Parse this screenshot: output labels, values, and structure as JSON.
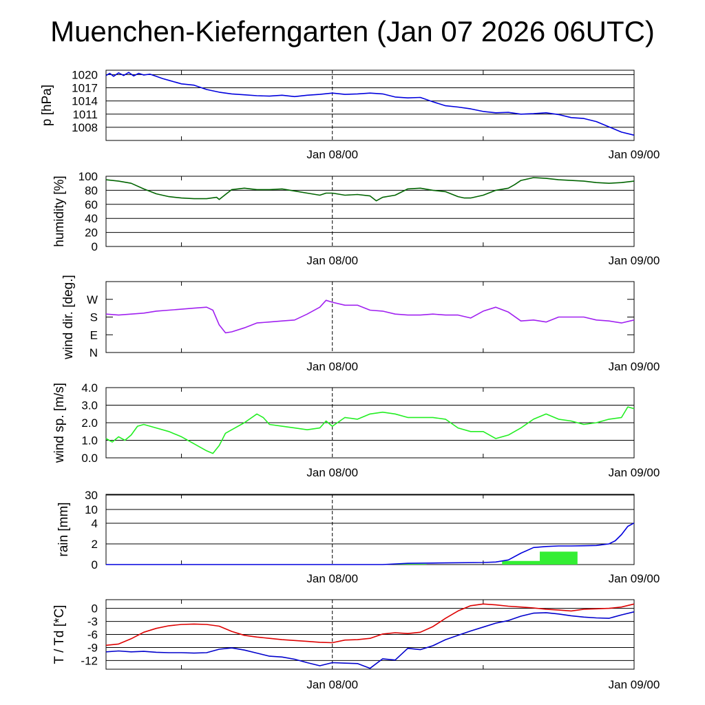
{
  "title": "Muenchen-Kieferngarten (Jan 07 2026 06UTC)",
  "colors": {
    "pressure": "#0000dd",
    "humidity": "#006400",
    "wind_dir": "#a020f0",
    "wind_speed": "#22ee22",
    "rain_line": "#0000dd",
    "rain_bar": "#33ee33",
    "temperature": "#dd0000",
    "dewpoint": "#0000cc"
  },
  "chart_data": [
    {
      "type": "line",
      "panel": "pressure",
      "ylabel": "p [hPa]",
      "x_unit": "hours since Jan 07 06UTC",
      "xlim": [
        0,
        42
      ],
      "ylim": [
        1005,
        1021
      ],
      "yticks": [
        1008,
        1011,
        1014,
        1017,
        1020
      ],
      "ytick_labels": [
        "1008",
        "1011",
        "1014",
        "1017",
        "1020"
      ],
      "xtick_labels": [
        {
          "x": 18,
          "label": "Jan 08/00"
        },
        {
          "x": 42,
          "label": "Jan 09/00"
        }
      ],
      "series": [
        {
          "name": "pressure",
          "color_key": "pressure",
          "x": [
            0,
            0.3,
            0.6,
            1,
            1.4,
            1.8,
            2.2,
            2.6,
            3,
            3.5,
            4,
            4.5,
            5,
            6,
            7,
            8,
            9,
            10,
            11,
            12,
            13,
            14,
            15,
            16,
            17,
            18,
            19,
            20,
            21,
            22,
            23,
            24,
            25,
            26,
            27,
            28,
            29,
            30,
            31,
            32,
            33,
            34,
            35,
            36,
            37,
            38,
            39,
            40,
            41,
            42
          ],
          "y": [
            1019.8,
            1020.3,
            1019.6,
            1020.4,
            1019.8,
            1020.5,
            1019.7,
            1020.3,
            1019.9,
            1020.1,
            1019.6,
            1019.1,
            1018.7,
            1017.9,
            1017.6,
            1016.6,
            1016.0,
            1015.6,
            1015.4,
            1015.2,
            1015.1,
            1015.3,
            1015.0,
            1015.3,
            1015.5,
            1015.8,
            1015.5,
            1015.6,
            1015.8,
            1015.6,
            1014.9,
            1014.7,
            1014.8,
            1013.8,
            1012.9,
            1012.6,
            1012.2,
            1011.6,
            1011.3,
            1011.4,
            1011.0,
            1011.1,
            1011.3,
            1010.9,
            1010.2,
            1010.0,
            1009.3,
            1008.1,
            1006.9,
            1006.2
          ]
        }
      ]
    },
    {
      "type": "line",
      "panel": "humidity",
      "ylabel": "humidity [%]",
      "xlim": [
        0,
        42
      ],
      "ylim": [
        0,
        100
      ],
      "yticks": [
        0,
        20,
        40,
        60,
        80,
        100
      ],
      "ytick_labels": [
        "0",
        "20",
        "40",
        "60",
        "80",
        "100"
      ],
      "xtick_labels": [
        {
          "x": 18,
          "label": "Jan 08/00"
        },
        {
          "x": 42,
          "label": "Jan 09/00"
        }
      ],
      "series": [
        {
          "name": "relative humidity",
          "color_key": "humidity",
          "x": [
            0,
            1,
            2,
            3,
            4,
            5,
            6,
            7,
            8,
            8.8,
            9,
            9.5,
            10,
            11,
            12,
            13,
            14,
            15,
            16,
            17,
            17.5,
            18,
            19,
            20,
            21,
            21.5,
            22,
            23,
            24,
            25,
            26,
            27,
            28,
            28.5,
            29,
            30,
            31,
            32,
            32.5,
            33,
            34,
            35,
            36,
            37,
            38,
            39,
            40,
            41,
            42
          ],
          "y": [
            95,
            93,
            90,
            82,
            75,
            71,
            69,
            68,
            68,
            70,
            67,
            74,
            81,
            83,
            81,
            81,
            82,
            79,
            76,
            73,
            76,
            76,
            73,
            74,
            72,
            65,
            70,
            73,
            82,
            83,
            80,
            78,
            71,
            69,
            69,
            73,
            80,
            83,
            88,
            94,
            98,
            97,
            95,
            94,
            93,
            91,
            90,
            91,
            93
          ]
        }
      ]
    },
    {
      "type": "line",
      "panel": "wind_direction",
      "ylabel": "wind dir. [deg.]",
      "xlim": [
        0,
        42
      ],
      "ylim": [
        0,
        360
      ],
      "yticks": [
        0,
        90,
        180,
        270
      ],
      "ytick_labels": [
        "N",
        "E",
        "S",
        "W"
      ],
      "xtick_labels": [
        {
          "x": 18,
          "label": "Jan 08/00"
        },
        {
          "x": 42,
          "label": "Jan 09/00"
        }
      ],
      "series": [
        {
          "name": "wind direction",
          "color_key": "wind_dir",
          "x": [
            0,
            1,
            2,
            3,
            4,
            5,
            6,
            7,
            8,
            8.5,
            9,
            9.5,
            10,
            11,
            12,
            13,
            14,
            15,
            16,
            17,
            17.5,
            18,
            19,
            20,
            21,
            22,
            23,
            24,
            25,
            26,
            27,
            28,
            29,
            30,
            31,
            32,
            33,
            34,
            35,
            36,
            37,
            38,
            39,
            40,
            41,
            42
          ],
          "y": [
            195,
            190,
            195,
            200,
            210,
            215,
            220,
            225,
            230,
            215,
            140,
            100,
            105,
            125,
            150,
            155,
            160,
            165,
            195,
            230,
            265,
            255,
            240,
            240,
            215,
            210,
            195,
            190,
            190,
            195,
            190,
            190,
            175,
            210,
            230,
            205,
            160,
            165,
            155,
            180,
            180,
            180,
            165,
            160,
            150,
            165
          ]
        }
      ]
    },
    {
      "type": "line",
      "panel": "wind_speed",
      "ylabel": "wind sp. [m/s]",
      "xlim": [
        0,
        42
      ],
      "ylim": [
        0,
        4
      ],
      "yticks": [
        0,
        1,
        2,
        3,
        4
      ],
      "ytick_labels": [
        "0.0",
        "1.0",
        "2.0",
        "3.0",
        "4.0"
      ],
      "xtick_labels": [
        {
          "x": 18,
          "label": "Jan 08/00"
        },
        {
          "x": 42,
          "label": "Jan 09/00"
        }
      ],
      "series": [
        {
          "name": "wind speed",
          "color_key": "wind_speed",
          "x": [
            0,
            0.5,
            1,
            1.5,
            2,
            2.5,
            3,
            4,
            5,
            6,
            7,
            8,
            8.5,
            9,
            9.5,
            10,
            11,
            12,
            12.5,
            13,
            14,
            15,
            16,
            17,
            17.5,
            18,
            19,
            20,
            21,
            22,
            23,
            24,
            25,
            26,
            27,
            28,
            29,
            30,
            31,
            32,
            33,
            34,
            35,
            36,
            37,
            38,
            39,
            40,
            41,
            41.5,
            42
          ],
          "y": [
            1.1,
            0.9,
            1.2,
            1.0,
            1.3,
            1.8,
            1.9,
            1.7,
            1.5,
            1.2,
            0.8,
            0.4,
            0.25,
            0.7,
            1.4,
            1.6,
            2.0,
            2.5,
            2.3,
            1.9,
            1.8,
            1.7,
            1.6,
            1.7,
            2.1,
            1.8,
            2.3,
            2.2,
            2.5,
            2.6,
            2.5,
            2.3,
            2.3,
            2.3,
            2.2,
            1.7,
            1.5,
            1.5,
            1.1,
            1.3,
            1.7,
            2.2,
            2.5,
            2.2,
            2.1,
            1.9,
            2.0,
            2.2,
            2.3,
            2.9,
            2.8
          ]
        }
      ]
    },
    {
      "type": "bar",
      "panel": "rain",
      "ylabel": "rain [mm]",
      "xlim": [
        0,
        42
      ],
      "yticks": [
        0,
        2,
        4,
        10,
        30
      ],
      "ytick_labels": [
        "0",
        "2",
        "4",
        "10",
        "30"
      ],
      "xtick_labels": [
        {
          "x": 18,
          "label": "Jan 08/00"
        },
        {
          "x": 42,
          "label": "Jan 09/00"
        }
      ],
      "bars": [
        {
          "x0": 22.5,
          "x1": 25.5,
          "value": 0.06
        },
        {
          "x0": 31.5,
          "x1": 34.5,
          "value": 0.35
        },
        {
          "x0": 34.5,
          "x1": 37.5,
          "value": 1.25
        }
      ],
      "series": [
        {
          "name": "accumulated rain",
          "color_key": "rain_line",
          "x": [
            0,
            22,
            24,
            26,
            30,
            31,
            32,
            33,
            34,
            35,
            36,
            37,
            38,
            39,
            40,
            40.5,
            41,
            41.5,
            42
          ],
          "y": [
            0,
            0,
            0.12,
            0.15,
            0.2,
            0.25,
            0.45,
            1.1,
            1.65,
            1.75,
            1.8,
            1.8,
            1.82,
            1.85,
            2.0,
            2.3,
            2.9,
            3.7,
            4.1
          ]
        }
      ]
    },
    {
      "type": "line",
      "panel": "temperature",
      "ylabel": "T / Td [*C]",
      "xlim": [
        0,
        42
      ],
      "ylim": [
        -14,
        2
      ],
      "yticks": [
        -12,
        -9,
        -6,
        -3,
        0
      ],
      "ytick_labels": [
        "-12",
        "-9",
        "-6",
        "-3",
        "0"
      ],
      "xtick_labels": [
        {
          "x": 18,
          "label": "Jan 08/00"
        },
        {
          "x": 42,
          "label": "Jan 09/00"
        }
      ],
      "series": [
        {
          "name": "T",
          "color_key": "temperature",
          "x": [
            0,
            1,
            2,
            3,
            4,
            5,
            6,
            7,
            8,
            9,
            10,
            11,
            12,
            13,
            14,
            15,
            16,
            17,
            18,
            19,
            20,
            21,
            22,
            23,
            24,
            25,
            26,
            27,
            28,
            29,
            30,
            31,
            32,
            33,
            34,
            35,
            36,
            37,
            38,
            39,
            40,
            41,
            42
          ],
          "y": [
            -8.5,
            -8.2,
            -7.0,
            -5.5,
            -4.6,
            -4.0,
            -3.7,
            -3.6,
            -3.7,
            -4.1,
            -5.3,
            -6.2,
            -6.6,
            -6.9,
            -7.2,
            -7.4,
            -7.6,
            -7.8,
            -7.9,
            -7.3,
            -7.2,
            -6.9,
            -5.9,
            -5.6,
            -5.8,
            -5.5,
            -4.2,
            -2.3,
            -0.6,
            0.6,
            1.0,
            0.8,
            0.5,
            0.3,
            0.1,
            -0.2,
            -0.4,
            -0.6,
            -0.2,
            -0.1,
            0.0,
            0.3,
            1.0
          ]
        },
        {
          "name": "Td",
          "color_key": "dewpoint",
          "x": [
            0,
            1,
            2,
            3,
            4,
            5,
            6,
            7,
            8,
            9,
            10,
            11,
            12,
            13,
            14,
            15,
            16,
            17,
            18,
            19,
            20,
            21,
            22,
            23,
            24,
            25,
            26,
            27,
            28,
            29,
            30,
            31,
            32,
            33,
            34,
            35,
            36,
            37,
            38,
            39,
            40,
            41,
            42
          ],
          "y": [
            -10.0,
            -9.8,
            -10.0,
            -9.9,
            -10.1,
            -10.2,
            -10.2,
            -10.3,
            -10.2,
            -9.4,
            -9.1,
            -9.6,
            -10.3,
            -11.0,
            -11.2,
            -11.7,
            -12.5,
            -13.2,
            -12.5,
            -12.6,
            -12.7,
            -13.8,
            -11.6,
            -11.9,
            -9.2,
            -9.5,
            -8.6,
            -7.2,
            -6.2,
            -5.2,
            -4.3,
            -3.4,
            -2.8,
            -1.8,
            -1.1,
            -1.0,
            -1.3,
            -1.7,
            -2.0,
            -2.2,
            -2.3,
            -1.5,
            -0.8
          ]
        }
      ]
    }
  ]
}
